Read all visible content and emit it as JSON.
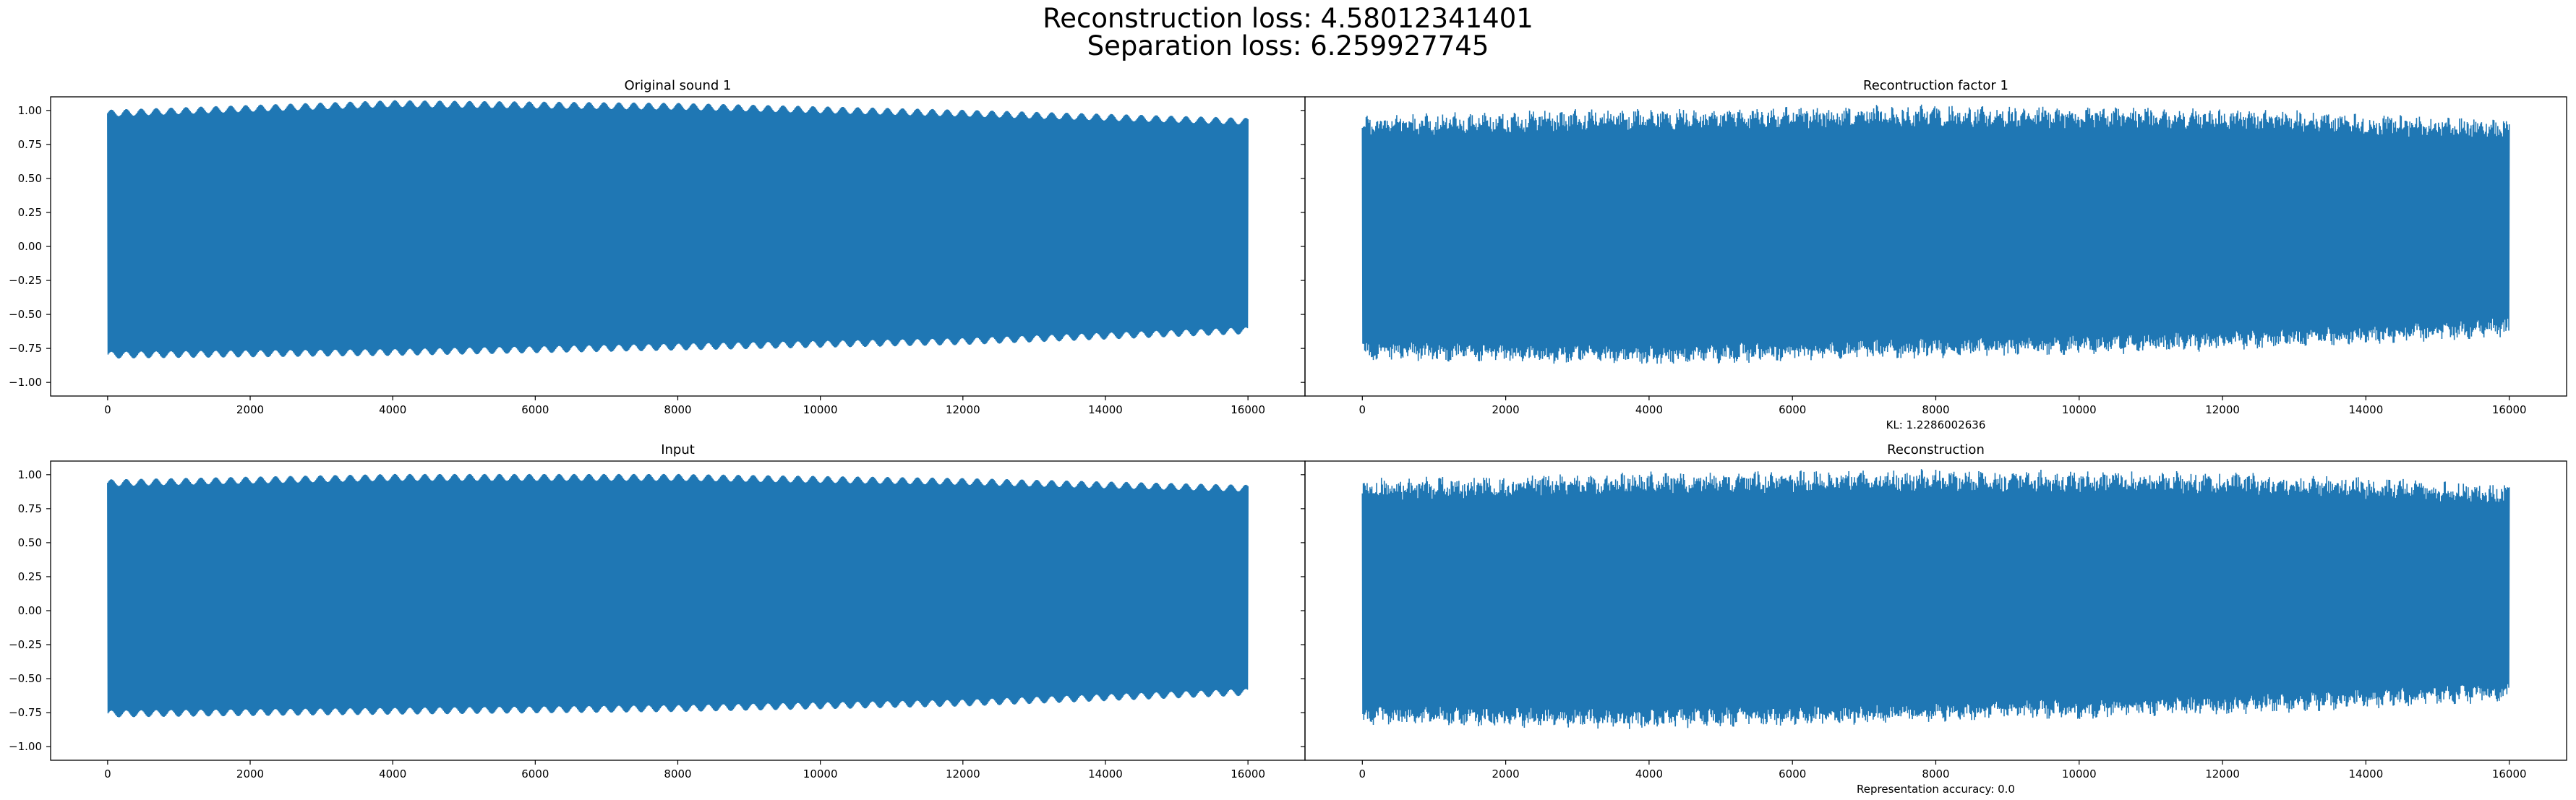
{
  "suptitle": {
    "line1": "Reconstruction loss: 4.58012341401",
    "line2": "Separation loss: 6.259927745"
  },
  "colors": {
    "series": "#1f77b4",
    "axes": "#000000",
    "background": "#ffffff"
  },
  "chart_data": [
    {
      "type": "line",
      "title": "Original sound 1",
      "xlabel": "",
      "ylabel": "",
      "xlim": [
        -800,
        16800
      ],
      "ylim": [
        -1.1,
        1.1
      ],
      "xticks": [
        0,
        2000,
        4000,
        6000,
        8000,
        10000,
        12000,
        14000,
        16000
      ],
      "yticks": [
        -1.0,
        -0.75,
        -0.5,
        -0.25,
        0.0,
        0.25,
        0.5,
        0.75,
        1.0
      ],
      "ytick_labels": [
        "−1.00",
        "−0.75",
        "−0.50",
        "−0.25",
        "0.00",
        "0.25",
        "0.50",
        "0.75",
        "1.00"
      ],
      "grid": false,
      "series": [
        {
          "x_range": [
            0,
            16000
          ],
          "upper": [
            0.98,
            1.05,
            1.03,
            0.98,
            0.92
          ],
          "lower": [
            -0.8,
            -0.78,
            -0.74,
            -0.7,
            -0.62
          ]
        }
      ]
    },
    {
      "type": "line",
      "title": "Recontruction factor 1",
      "xlabel": "KL: 1.2286002636",
      "ylabel": "",
      "xlim": [
        -800,
        16800
      ],
      "ylim": [
        -1.1,
        1.1
      ],
      "xticks": [
        0,
        2000,
        4000,
        6000,
        8000,
        10000,
        12000,
        14000,
        16000
      ],
      "yticks": [
        -1.0,
        -0.75,
        -0.5,
        -0.25,
        0.0,
        0.25,
        0.5,
        0.75,
        1.0
      ],
      "ytick_labels": [],
      "grid": false,
      "series": [
        {
          "x_range": [
            0,
            16000
          ],
          "upper": [
            0.95,
            1.0,
            1.02,
            1.0,
            0.92
          ],
          "lower": [
            -0.82,
            -0.85,
            -0.8,
            -0.75,
            -0.65
          ]
        }
      ]
    },
    {
      "type": "line",
      "title": "Input",
      "xlabel": "",
      "ylabel": "",
      "xlim": [
        -800,
        16800
      ],
      "ylim": [
        -1.1,
        1.1
      ],
      "xticks": [
        0,
        2000,
        4000,
        6000,
        8000,
        10000,
        12000,
        14000,
        16000
      ],
      "yticks": [
        -1.0,
        -0.75,
        -0.5,
        -0.25,
        0.0,
        0.25,
        0.5,
        0.75,
        1.0
      ],
      "ytick_labels": [
        "−1.00",
        "−0.75",
        "−0.50",
        "−0.25",
        "0.00",
        "0.25",
        "0.50",
        "0.75",
        "1.00"
      ],
      "grid": false,
      "series": [
        {
          "x_range": [
            0,
            16000
          ],
          "upper": [
            0.94,
            0.98,
            0.98,
            0.95,
            0.9
          ],
          "lower": [
            -0.76,
            -0.74,
            -0.72,
            -0.68,
            -0.6
          ]
        }
      ]
    },
    {
      "type": "line",
      "title": "Reconstruction",
      "xlabel": "Representation accuracy: 0.0",
      "ylabel": "",
      "xlim": [
        -800,
        16800
      ],
      "ylim": [
        -1.1,
        1.1
      ],
      "xticks": [
        0,
        2000,
        4000,
        6000,
        8000,
        10000,
        12000,
        14000,
        16000
      ],
      "yticks": [
        -1.0,
        -0.75,
        -0.5,
        -0.25,
        0.0,
        0.25,
        0.5,
        0.75,
        1.0
      ],
      "ytick_labels": [],
      "grid": false,
      "series": [
        {
          "x_range": [
            0,
            16000
          ],
          "upper": [
            0.95,
            1.0,
            1.02,
            1.0,
            0.92
          ],
          "lower": [
            -0.82,
            -0.85,
            -0.8,
            -0.75,
            -0.65
          ]
        }
      ]
    }
  ]
}
